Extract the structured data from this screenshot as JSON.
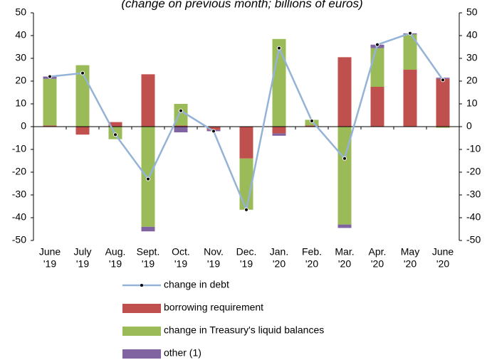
{
  "chart_data": {
    "type": "bar",
    "stacked": true,
    "subtitle": "(change on previous month; billions of euros)",
    "categories": [
      [
        "June",
        "'19"
      ],
      [
        "July",
        "'19"
      ],
      [
        "Aug.",
        "'19"
      ],
      [
        "Sept.",
        "'19"
      ],
      [
        "Oct.",
        "'19"
      ],
      [
        "Nov.",
        "'19"
      ],
      [
        "Dec.",
        "'19"
      ],
      [
        "Jan.",
        "'20"
      ],
      [
        "Feb.",
        "'20"
      ],
      [
        "Mar.",
        "'20"
      ],
      [
        "Apr.",
        "'20"
      ],
      [
        "May",
        "'20"
      ],
      [
        "June",
        "'20"
      ]
    ],
    "series": [
      {
        "name": "change in debt",
        "type": "line",
        "color": "#95b3d7",
        "values": [
          22,
          23.5,
          -3.5,
          -23,
          7,
          -2,
          -36.5,
          34.5,
          2.5,
          -14,
          36,
          41,
          20.5
        ]
      },
      {
        "name": "borrowing requirement",
        "type": "bar",
        "color": "#c0504d",
        "values": [
          0.5,
          -3.5,
          2,
          23,
          0.5,
          -1.5,
          -14,
          -3,
          0.5,
          30.5,
          17.5,
          25,
          21
        ]
      },
      {
        "name": "change in Treasury's liquid balances",
        "type": "bar",
        "color": "#9bbb59",
        "values": [
          20.5,
          27,
          -5.5,
          -44,
          9.5,
          0,
          -22.5,
          38.5,
          2.5,
          -43,
          17,
          15.5,
          -0.5
        ]
      },
      {
        "name": "other (1)",
        "type": "bar",
        "color": "#8064a2",
        "values": [
          1,
          0,
          0,
          -2,
          -2.5,
          -0.5,
          0,
          -1,
          0,
          -1.5,
          1.5,
          0.5,
          0.5
        ]
      }
    ],
    "ylim": [
      -50,
      50
    ],
    "yticks": [
      -50,
      -40,
      -30,
      -20,
      -10,
      0,
      10,
      20,
      30,
      40,
      50
    ],
    "y2lim": [
      -50,
      50
    ],
    "y2ticks": [
      -50,
      -40,
      -30,
      -20,
      -10,
      0,
      10,
      20,
      30,
      40,
      50
    ],
    "grid": false
  }
}
